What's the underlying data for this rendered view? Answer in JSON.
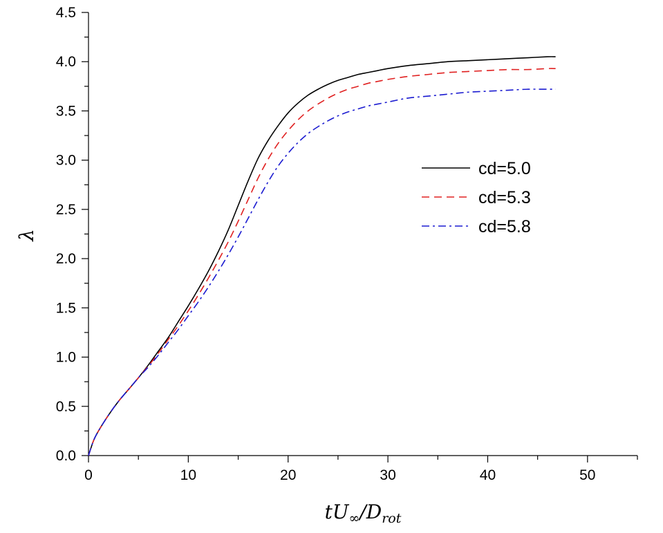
{
  "chart_data": {
    "type": "line",
    "title": "",
    "xlabel": "tU∞/Drot",
    "ylabel": "λ",
    "xlim": [
      0,
      55
    ],
    "ylim": [
      0,
      4.5
    ],
    "x_ticks": [
      0,
      10,
      20,
      30,
      40,
      50
    ],
    "x_tick_labels": [
      "0",
      "10",
      "20",
      "30",
      "40",
      "50"
    ],
    "y_ticks": [
      0,
      0.5,
      1,
      1.5,
      2,
      2.5,
      3,
      3.5,
      4,
      4.5
    ],
    "y_tick_labels": [
      "0.0",
      "0.5",
      "1.0",
      "1.5",
      "2.0",
      "2.5",
      "3.0",
      "3.5",
      "4.0",
      "4.5"
    ],
    "grid": false,
    "legend_position": "right-middle",
    "x": [
      0,
      0.5,
      1,
      2,
      3,
      4,
      5,
      6,
      7,
      8,
      9,
      10,
      11,
      12,
      13,
      14,
      15,
      16,
      17,
      18,
      19,
      20,
      21,
      22,
      23,
      24,
      25,
      26,
      27,
      28,
      29,
      30,
      32,
      34,
      36,
      38,
      40,
      42,
      44,
      46,
      46.8
    ],
    "series": [
      {
        "name": "cd=5.0",
        "color": "#000000",
        "dash": "solid",
        "values": [
          0,
          0.15,
          0.25,
          0.41,
          0.55,
          0.67,
          0.79,
          0.92,
          1.06,
          1.2,
          1.36,
          1.52,
          1.69,
          1.87,
          2.07,
          2.29,
          2.54,
          2.79,
          3.02,
          3.2,
          3.35,
          3.48,
          3.58,
          3.66,
          3.72,
          3.77,
          3.81,
          3.84,
          3.87,
          3.89,
          3.91,
          3.93,
          3.96,
          3.98,
          4.0,
          4.01,
          4.02,
          4.03,
          4.04,
          4.05,
          4.05
        ]
      },
      {
        "name": "cd=5.3",
        "color": "#e02020",
        "dash": "dashed",
        "values": [
          0,
          0.15,
          0.25,
          0.41,
          0.55,
          0.67,
          0.79,
          0.91,
          1.04,
          1.18,
          1.32,
          1.47,
          1.63,
          1.8,
          1.98,
          2.17,
          2.38,
          2.6,
          2.82,
          3.01,
          3.17,
          3.3,
          3.41,
          3.5,
          3.57,
          3.63,
          3.68,
          3.72,
          3.75,
          3.78,
          3.8,
          3.82,
          3.85,
          3.87,
          3.89,
          3.9,
          3.91,
          3.92,
          3.92,
          3.93,
          3.93
        ]
      },
      {
        "name": "cd=5.8",
        "color": "#1a1ad0",
        "dash": "dashdot",
        "values": [
          0,
          0.15,
          0.25,
          0.41,
          0.55,
          0.67,
          0.79,
          0.9,
          1.02,
          1.15,
          1.28,
          1.42,
          1.56,
          1.71,
          1.87,
          2.04,
          2.22,
          2.41,
          2.6,
          2.78,
          2.94,
          3.07,
          3.18,
          3.27,
          3.34,
          3.4,
          3.45,
          3.49,
          3.52,
          3.55,
          3.57,
          3.59,
          3.63,
          3.65,
          3.67,
          3.69,
          3.7,
          3.71,
          3.72,
          3.72,
          3.72
        ]
      }
    ]
  }
}
